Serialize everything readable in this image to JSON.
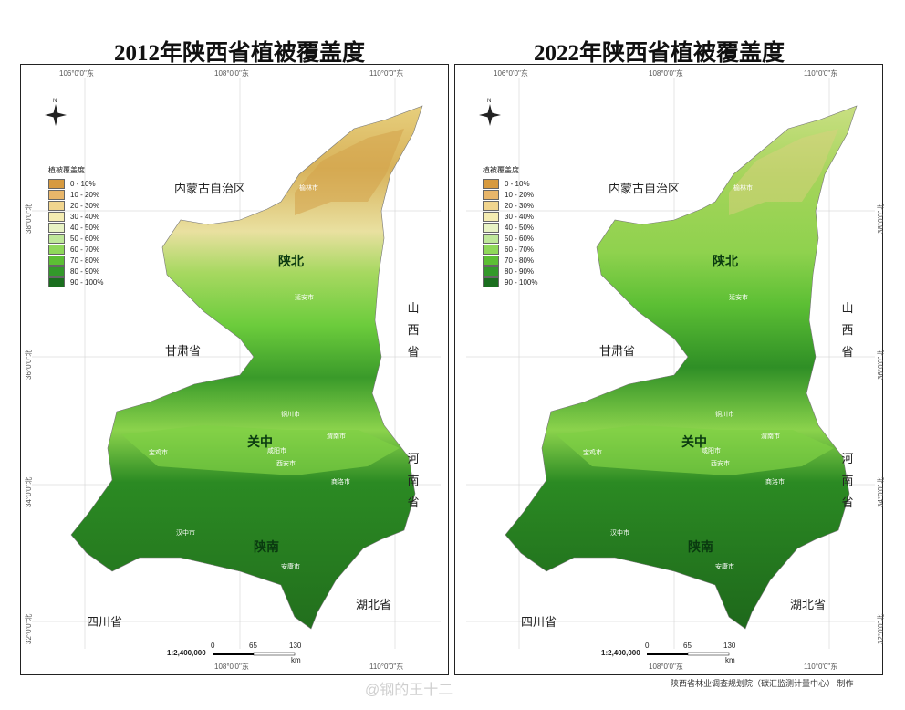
{
  "titles": [
    "2012年陕西省植被覆盖度",
    "2022年陕西省植被覆盖度"
  ],
  "lon_ticks": [
    "106°0'0\"东",
    "108°0'0\"东",
    "110°0'0\"东"
  ],
  "lat_ticks": [
    "38°0'0\"北",
    "36°0'0\"北",
    "34°0'0\"北",
    "32°0'0\"北"
  ],
  "provinces": {
    "neimenggu": "内蒙古自治区",
    "gansu": "甘肃省",
    "shanxi": "山西省",
    "henan": "河南省",
    "hubei": "湖北省",
    "sichuan": "四川省"
  },
  "regions": {
    "north": "陕北",
    "central": "关中",
    "south": "陕南"
  },
  "cities": [
    "榆林市",
    "延安市",
    "铜川市",
    "渭南市",
    "咸阳市",
    "西安市",
    "宝鸡市",
    "商洛市",
    "汉中市",
    "安康市"
  ],
  "legend": {
    "title": "植被覆盖度",
    "items": [
      "0 - 10%",
      "10 - 20%",
      "20 - 30%",
      "30 - 40%",
      "40 - 50%",
      "50 - 60%",
      "60 - 70%",
      "70 - 80%",
      "80 - 90%",
      "90 - 100%"
    ],
    "colors": [
      "#d79a3f",
      "#e8b66a",
      "#f1d58e",
      "#f4ecb2",
      "#e8f3c4",
      "#bfe89a",
      "#8fd85a",
      "#5cbf34",
      "#33992a",
      "#1a6e1e"
    ]
  },
  "scale": {
    "ratio": "1:2,400,000",
    "labels": [
      "0",
      "65",
      "130"
    ],
    "unit": "km"
  },
  "credit": "陕西省林业调查规划院（碳汇监测计量中心） 制作",
  "watermark": "@钢的王十二",
  "colors": {
    "north_2012": "#e6cf80",
    "north_2022": "#a9d85a",
    "green_mid": "#5cbf34",
    "green_dark": "#2e8a24",
    "green_darkest": "#1a6e1e"
  }
}
